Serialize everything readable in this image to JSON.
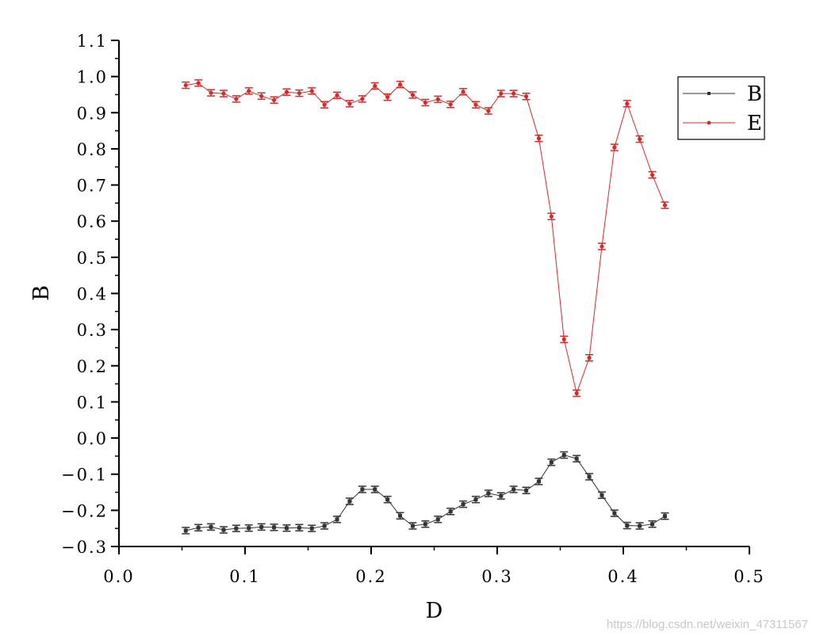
{
  "chart_data": {
    "type": "line",
    "xlabel": "D",
    "ylabel": "B",
    "xlim": [
      0.0,
      0.5
    ],
    "ylim": [
      -0.3,
      1.1
    ],
    "xticks": [
      "0.0",
      "0.1",
      "0.2",
      "0.3",
      "0.4",
      "0.5"
    ],
    "yticks": [
      "−0.3",
      "−0.2",
      "−0.1",
      "0.0",
      "0.1",
      "0.2",
      "0.3",
      "0.4",
      "0.5",
      "0.6",
      "0.7",
      "0.8",
      "0.9",
      "1.0",
      "1.1"
    ],
    "grid": false,
    "legend_position": "top-right",
    "x": [
      0.053,
      0.063,
      0.073,
      0.083,
      0.093,
      0.103,
      0.113,
      0.123,
      0.133,
      0.143,
      0.153,
      0.163,
      0.173,
      0.183,
      0.193,
      0.203,
      0.213,
      0.223,
      0.233,
      0.243,
      0.253,
      0.263,
      0.273,
      0.283,
      0.293,
      0.303,
      0.313,
      0.323,
      0.333,
      0.343,
      0.353,
      0.363,
      0.373,
      0.383,
      0.393,
      0.403,
      0.413,
      0.423,
      0.433
    ],
    "series": [
      {
        "name": "B",
        "color": "#333333",
        "marker": "square",
        "values": [
          -0.256,
          -0.248,
          -0.246,
          -0.254,
          -0.25,
          -0.249,
          -0.246,
          -0.247,
          -0.249,
          -0.248,
          -0.25,
          -0.243,
          -0.225,
          -0.175,
          -0.142,
          -0.142,
          -0.17,
          -0.215,
          -0.243,
          -0.238,
          -0.225,
          -0.203,
          -0.183,
          -0.17,
          -0.153,
          -0.16,
          -0.142,
          -0.145,
          -0.12,
          -0.067,
          -0.047,
          -0.057,
          -0.107,
          -0.158,
          -0.208,
          -0.242,
          -0.243,
          -0.238,
          -0.216
        ]
      },
      {
        "name": "E",
        "color": "#d42a2a",
        "marker": "circle",
        "values": [
          0.976,
          0.982,
          0.955,
          0.953,
          0.938,
          0.96,
          0.946,
          0.935,
          0.957,
          0.954,
          0.96,
          0.922,
          0.948,
          0.925,
          0.938,
          0.974,
          0.943,
          0.978,
          0.949,
          0.928,
          0.937,
          0.923,
          0.958,
          0.922,
          0.905,
          0.953,
          0.953,
          0.945,
          0.829,
          0.613,
          0.273,
          0.124,
          0.222,
          0.53,
          0.804,
          0.925,
          0.827,
          0.728,
          0.644
        ]
      }
    ]
  },
  "watermark": "https://blog.csdn.net/weixin_47311567"
}
